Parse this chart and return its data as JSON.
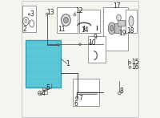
{
  "bg_color": "#f5f5f0",
  "border_color": "#cccccc",
  "radiator_color": "#5bc8d8",
  "radiator_border": "#3a9ab0",
  "box_color": "#ffffff",
  "box_border": "#888888",
  "line_color": "#444444",
  "text_color": "#222222",
  "label_fontsize": 5.5
}
